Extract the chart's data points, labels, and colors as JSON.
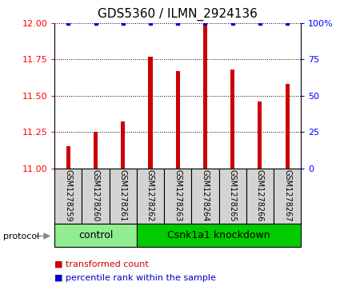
{
  "title": "GDS5360 / ILMN_2924136",
  "samples": [
    "GSM1278259",
    "GSM1278260",
    "GSM1278261",
    "GSM1278262",
    "GSM1278263",
    "GSM1278264",
    "GSM1278265",
    "GSM1278266",
    "GSM1278267"
  ],
  "bar_values": [
    11.15,
    11.25,
    11.32,
    11.77,
    11.67,
    12.0,
    11.68,
    11.46,
    11.58
  ],
  "percentile_values": [
    100,
    100,
    100,
    100,
    100,
    100,
    100,
    100,
    100
  ],
  "bar_color": "#cc0000",
  "dot_color": "#0000cc",
  "ylim_left": [
    11,
    12
  ],
  "ylim_right": [
    0,
    100
  ],
  "yticks_left": [
    11,
    11.25,
    11.5,
    11.75,
    12
  ],
  "yticks_right": [
    0,
    25,
    50,
    75,
    100
  ],
  "groups": [
    {
      "label": "control",
      "start": 0,
      "end": 3,
      "color": "#90ee90"
    },
    {
      "label": "Csnk1a1 knockdown",
      "start": 3,
      "end": 9,
      "color": "#00cc00"
    }
  ],
  "protocol_label": "protocol",
  "legend_items": [
    {
      "label": "transformed count",
      "color": "#cc0000"
    },
    {
      "label": "percentile rank within the sample",
      "color": "#0000cc"
    }
  ],
  "background_color": "#ffffff",
  "bar_bg_color": "#d3d3d3",
  "title_fontsize": 11,
  "tick_fontsize": 8,
  "sample_fontsize": 7,
  "group_fontsize": 9,
  "legend_fontsize": 8,
  "protocol_fontsize": 8,
  "bar_width": 0.15
}
